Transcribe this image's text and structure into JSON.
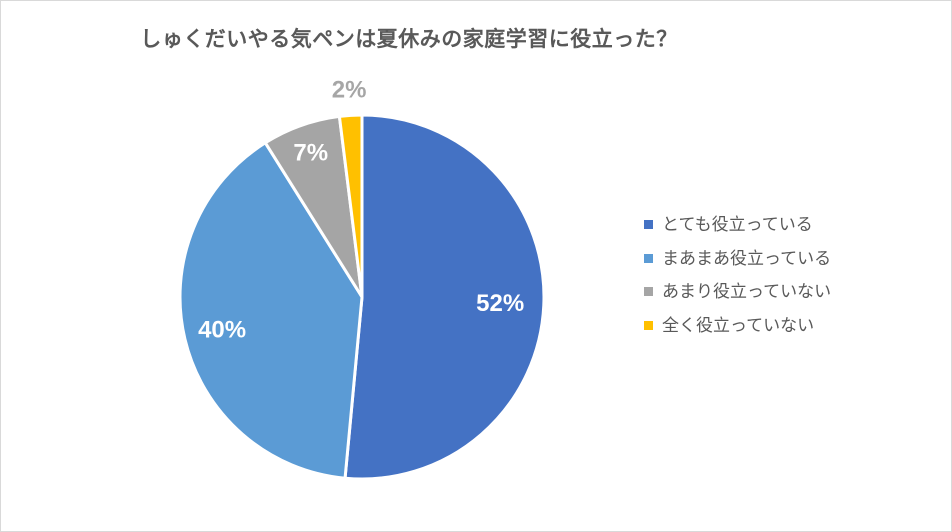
{
  "frame": {
    "background": "#FFFFFF",
    "border_color": "#D9D9D9"
  },
  "chart_data": {
    "type": "pie",
    "title": "しゅくだいやる気ペンは夏休みの家庭学習に役立った？",
    "categories": [
      "とても役立っている",
      "まあまあ役立っている",
      "あまり役立っていない",
      "全く役立っていない"
    ],
    "values": [
      52,
      40,
      7,
      2
    ],
    "unit": "%",
    "labels": [
      "52%",
      "40%",
      "7%",
      "2%"
    ],
    "colors": [
      "#4472C4",
      "#5B9BD5",
      "#A5A5A5",
      "#FFC000"
    ],
    "label_colors": [
      "#FFFFFF",
      "#FFFFFF",
      "#FFFFFF",
      "#A6A6A6"
    ],
    "slice_border_color": "#FFFFFF",
    "title_color": "#595959",
    "legend_text_color": "#595959",
    "legend_position": "right",
    "start_angle_deg": 0,
    "direction": "clockwise"
  }
}
